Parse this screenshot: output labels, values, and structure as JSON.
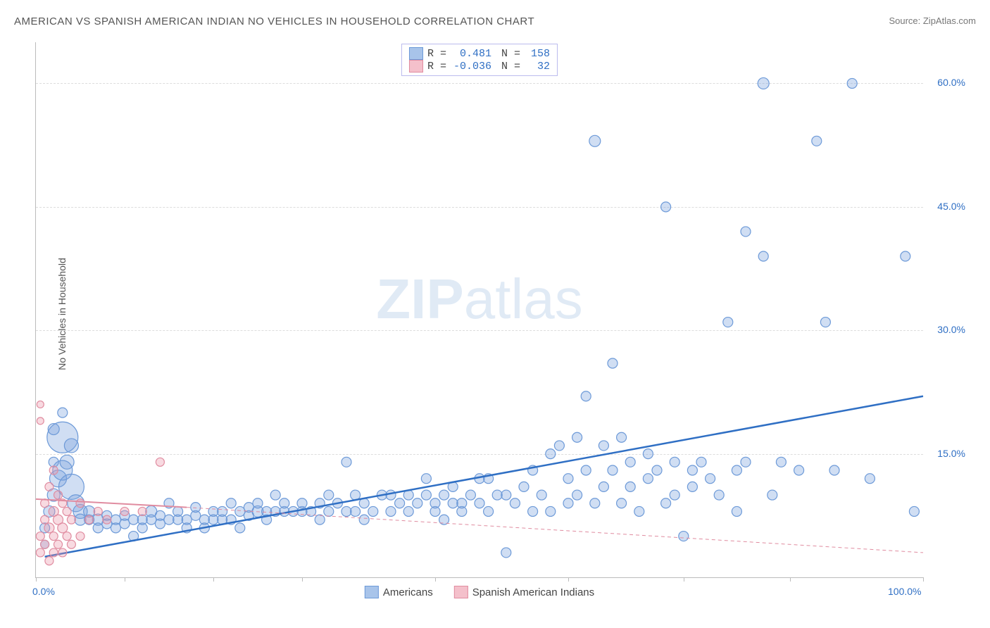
{
  "title": "AMERICAN VS SPANISH AMERICAN INDIAN NO VEHICLES IN HOUSEHOLD CORRELATION CHART",
  "source_prefix": "Source: ",
  "source_name": "ZipAtlas.com",
  "y_axis_label": "No Vehicles in Household",
  "watermark_bold": "ZIP",
  "watermark_light": "atlas",
  "chart": {
    "type": "scatter",
    "background_color": "#ffffff",
    "grid_color": "#dddddd",
    "axis_color": "#bbbbbb",
    "xlim": [
      0,
      100
    ],
    "ylim": [
      0,
      65
    ],
    "x_ticks": [
      0,
      10,
      20,
      30,
      45,
      60,
      73,
      85,
      100
    ],
    "x_tick_labels": {
      "0": "0.0%",
      "100": "100.0%"
    },
    "x_label_color": "#2f6fc4",
    "y_ticks": [
      15,
      30,
      45,
      60
    ],
    "y_tick_labels": {
      "15": "15.0%",
      "30": "30.0%",
      "45": "45.0%",
      "60": "60.0%"
    },
    "y_label_color": "#2f6fc4",
    "stats_box": {
      "border_color": "#bbbbee",
      "rows": [
        {
          "swatch_fill": "#a8c4ea",
          "swatch_border": "#6d9ad8",
          "r_label": "R = ",
          "r_value": "0.481",
          "r_color": "#2f6fc4",
          "n_label": "N = ",
          "n_value": "158",
          "n_color": "#2f6fc4"
        },
        {
          "swatch_fill": "#f4c0cb",
          "swatch_border": "#e08ca0",
          "r_label": "R = ",
          "r_value": "-0.036",
          "r_color": "#2f6fc4",
          "n_label": "N = ",
          "n_value": "32",
          "n_color": "#2f6fc4"
        }
      ]
    },
    "bottom_legend": [
      {
        "swatch_fill": "#a8c4ea",
        "swatch_border": "#6d9ad8",
        "label": "Americans"
      },
      {
        "swatch_fill": "#f4c0cb",
        "swatch_border": "#e08ca0",
        "label": "Spanish American Indians"
      }
    ],
    "series": [
      {
        "name": "Americans",
        "color_fill": "rgba(120,160,220,0.35)",
        "color_stroke": "#6d9ad8",
        "marker_stroke_width": 1.2,
        "trend": {
          "x1": 1,
          "y1": 2.5,
          "x2": 100,
          "y2": 22.0,
          "color": "#2f6fc4",
          "width": 2.5,
          "dash": "none"
        },
        "points": [
          {
            "x": 1,
            "y": 4,
            "r": 6
          },
          {
            "x": 1,
            "y": 6,
            "r": 7
          },
          {
            "x": 1.5,
            "y": 8,
            "r": 8
          },
          {
            "x": 2,
            "y": 10,
            "r": 9
          },
          {
            "x": 2.5,
            "y": 12,
            "r": 12
          },
          {
            "x": 3,
            "y": 13,
            "r": 14
          },
          {
            "x": 3,
            "y": 17,
            "r": 22
          },
          {
            "x": 3.5,
            "y": 14,
            "r": 10
          },
          {
            "x": 4,
            "y": 11,
            "r": 18
          },
          {
            "x": 4.5,
            "y": 9,
            "r": 12
          },
          {
            "x": 5,
            "y": 8,
            "r": 10
          },
          {
            "x": 5,
            "y": 7,
            "r": 8
          },
          {
            "x": 6,
            "y": 7,
            "r": 7
          },
          {
            "x": 6,
            "y": 8,
            "r": 8
          },
          {
            "x": 7,
            "y": 7,
            "r": 8
          },
          {
            "x": 7,
            "y": 6,
            "r": 7
          },
          {
            "x": 8,
            "y": 6.5,
            "r": 7
          },
          {
            "x": 8,
            "y": 7.5,
            "r": 7
          },
          {
            "x": 9,
            "y": 7,
            "r": 7
          },
          {
            "x": 9,
            "y": 6,
            "r": 7
          },
          {
            "x": 10,
            "y": 6.5,
            "r": 7
          },
          {
            "x": 10,
            "y": 7.5,
            "r": 7
          },
          {
            "x": 11,
            "y": 7,
            "r": 7
          },
          {
            "x": 11,
            "y": 5,
            "r": 7
          },
          {
            "x": 12,
            "y": 6,
            "r": 7
          },
          {
            "x": 12,
            "y": 7,
            "r": 7
          },
          {
            "x": 13,
            "y": 7,
            "r": 7
          },
          {
            "x": 13,
            "y": 8,
            "r": 8
          },
          {
            "x": 14,
            "y": 6.5,
            "r": 7
          },
          {
            "x": 14,
            "y": 7.5,
            "r": 7
          },
          {
            "x": 15,
            "y": 7,
            "r": 7
          },
          {
            "x": 16,
            "y": 7,
            "r": 7
          },
          {
            "x": 16,
            "y": 8,
            "r": 7
          },
          {
            "x": 17,
            "y": 7,
            "r": 7
          },
          {
            "x": 17,
            "y": 6,
            "r": 7
          },
          {
            "x": 18,
            "y": 7.5,
            "r": 7
          },
          {
            "x": 18,
            "y": 8.5,
            "r": 7
          },
          {
            "x": 19,
            "y": 7,
            "r": 7
          },
          {
            "x": 19,
            "y": 6,
            "r": 7
          },
          {
            "x": 20,
            "y": 8,
            "r": 7
          },
          {
            "x": 20,
            "y": 7,
            "r": 7
          },
          {
            "x": 21,
            "y": 7,
            "r": 7
          },
          {
            "x": 21,
            "y": 8,
            "r": 7
          },
          {
            "x": 22,
            "y": 9,
            "r": 7
          },
          {
            "x": 22,
            "y": 7,
            "r": 7
          },
          {
            "x": 23,
            "y": 8,
            "r": 7
          },
          {
            "x": 23,
            "y": 6,
            "r": 7
          },
          {
            "x": 24,
            "y": 8.5,
            "r": 7
          },
          {
            "x": 24,
            "y": 7.5,
            "r": 7
          },
          {
            "x": 25,
            "y": 8,
            "r": 8
          },
          {
            "x": 25,
            "y": 9,
            "r": 7
          },
          {
            "x": 26,
            "y": 7,
            "r": 7
          },
          {
            "x": 26,
            "y": 8,
            "r": 7
          },
          {
            "x": 27,
            "y": 8,
            "r": 7
          },
          {
            "x": 27,
            "y": 10,
            "r": 7
          },
          {
            "x": 28,
            "y": 8,
            "r": 7
          },
          {
            "x": 28,
            "y": 9,
            "r": 7
          },
          {
            "x": 29,
            "y": 8,
            "r": 7
          },
          {
            "x": 30,
            "y": 8,
            "r": 7
          },
          {
            "x": 30,
            "y": 9,
            "r": 7
          },
          {
            "x": 31,
            "y": 8,
            "r": 7
          },
          {
            "x": 32,
            "y": 9,
            "r": 7
          },
          {
            "x": 32,
            "y": 7,
            "r": 7
          },
          {
            "x": 33,
            "y": 8,
            "r": 7
          },
          {
            "x": 34,
            "y": 9,
            "r": 7
          },
          {
            "x": 35,
            "y": 8,
            "r": 7
          },
          {
            "x": 35,
            "y": 14,
            "r": 7
          },
          {
            "x": 36,
            "y": 8,
            "r": 7
          },
          {
            "x": 37,
            "y": 9,
            "r": 7
          },
          {
            "x": 37,
            "y": 7,
            "r": 7
          },
          {
            "x": 38,
            "y": 8,
            "r": 7
          },
          {
            "x": 39,
            "y": 10,
            "r": 7
          },
          {
            "x": 40,
            "y": 8,
            "r": 7
          },
          {
            "x": 40,
            "y": 10,
            "r": 7
          },
          {
            "x": 41,
            "y": 9,
            "r": 7
          },
          {
            "x": 42,
            "y": 8,
            "r": 7
          },
          {
            "x": 42,
            "y": 10,
            "r": 7
          },
          {
            "x": 43,
            "y": 9,
            "r": 7
          },
          {
            "x": 44,
            "y": 10,
            "r": 7
          },
          {
            "x": 44,
            "y": 12,
            "r": 7
          },
          {
            "x": 45,
            "y": 9,
            "r": 7
          },
          {
            "x": 45,
            "y": 8,
            "r": 7
          },
          {
            "x": 46,
            "y": 10,
            "r": 7
          },
          {
            "x": 47,
            "y": 9,
            "r": 7
          },
          {
            "x": 47,
            "y": 11,
            "r": 7
          },
          {
            "x": 48,
            "y": 9,
            "r": 7
          },
          {
            "x": 48,
            "y": 8,
            "r": 7
          },
          {
            "x": 49,
            "y": 10,
            "r": 7
          },
          {
            "x": 50,
            "y": 9,
            "r": 7
          },
          {
            "x": 50,
            "y": 12,
            "r": 7
          },
          {
            "x": 51,
            "y": 8,
            "r": 7
          },
          {
            "x": 52,
            "y": 10,
            "r": 7
          },
          {
            "x": 53,
            "y": 3,
            "r": 7
          },
          {
            "x": 54,
            "y": 9,
            "r": 7
          },
          {
            "x": 55,
            "y": 11,
            "r": 7
          },
          {
            "x": 56,
            "y": 8,
            "r": 7
          },
          {
            "x": 56,
            "y": 13,
            "r": 7
          },
          {
            "x": 57,
            "y": 10,
            "r": 7
          },
          {
            "x": 58,
            "y": 8,
            "r": 7
          },
          {
            "x": 58,
            "y": 15,
            "r": 7
          },
          {
            "x": 59,
            "y": 16,
            "r": 7
          },
          {
            "x": 60,
            "y": 9,
            "r": 7
          },
          {
            "x": 60,
            "y": 12,
            "r": 7
          },
          {
            "x": 61,
            "y": 17,
            "r": 7
          },
          {
            "x": 61,
            "y": 10,
            "r": 7
          },
          {
            "x": 62,
            "y": 13,
            "r": 7
          },
          {
            "x": 62,
            "y": 22,
            "r": 7
          },
          {
            "x": 63,
            "y": 9,
            "r": 7
          },
          {
            "x": 63,
            "y": 53,
            "r": 8
          },
          {
            "x": 64,
            "y": 11,
            "r": 7
          },
          {
            "x": 64,
            "y": 16,
            "r": 7
          },
          {
            "x": 65,
            "y": 26,
            "r": 7
          },
          {
            "x": 65,
            "y": 13,
            "r": 7
          },
          {
            "x": 66,
            "y": 9,
            "r": 7
          },
          {
            "x": 67,
            "y": 14,
            "r": 7
          },
          {
            "x": 67,
            "y": 11,
            "r": 7
          },
          {
            "x": 68,
            "y": 8,
            "r": 7
          },
          {
            "x": 69,
            "y": 15,
            "r": 7
          },
          {
            "x": 69,
            "y": 12,
            "r": 7
          },
          {
            "x": 70,
            "y": 13,
            "r": 7
          },
          {
            "x": 71,
            "y": 9,
            "r": 7
          },
          {
            "x": 71,
            "y": 45,
            "r": 7
          },
          {
            "x": 72,
            "y": 14,
            "r": 7
          },
          {
            "x": 72,
            "y": 10,
            "r": 7
          },
          {
            "x": 73,
            "y": 5,
            "r": 7
          },
          {
            "x": 74,
            "y": 13,
            "r": 7
          },
          {
            "x": 74,
            "y": 11,
            "r": 7
          },
          {
            "x": 75,
            "y": 14,
            "r": 7
          },
          {
            "x": 76,
            "y": 12,
            "r": 7
          },
          {
            "x": 77,
            "y": 10,
            "r": 7
          },
          {
            "x": 78,
            "y": 31,
            "r": 7
          },
          {
            "x": 79,
            "y": 13,
            "r": 7
          },
          {
            "x": 79,
            "y": 8,
            "r": 7
          },
          {
            "x": 80,
            "y": 14,
            "r": 7
          },
          {
            "x": 80,
            "y": 42,
            "r": 7
          },
          {
            "x": 82,
            "y": 60,
            "r": 8
          },
          {
            "x": 82,
            "y": 39,
            "r": 7
          },
          {
            "x": 83,
            "y": 10,
            "r": 7
          },
          {
            "x": 84,
            "y": 14,
            "r": 7
          },
          {
            "x": 86,
            "y": 13,
            "r": 7
          },
          {
            "x": 88,
            "y": 53,
            "r": 7
          },
          {
            "x": 89,
            "y": 31,
            "r": 7
          },
          {
            "x": 90,
            "y": 13,
            "r": 7
          },
          {
            "x": 92,
            "y": 60,
            "r": 7
          },
          {
            "x": 94,
            "y": 12,
            "r": 7
          },
          {
            "x": 98,
            "y": 39,
            "r": 7
          },
          {
            "x": 99,
            "y": 8,
            "r": 7
          },
          {
            "x": 46,
            "y": 7,
            "r": 7
          },
          {
            "x": 33,
            "y": 10,
            "r": 7
          },
          {
            "x": 15,
            "y": 9,
            "r": 7
          },
          {
            "x": 36,
            "y": 10,
            "r": 7
          },
          {
            "x": 4,
            "y": 16,
            "r": 10
          },
          {
            "x": 2,
            "y": 18,
            "r": 8
          },
          {
            "x": 3,
            "y": 20,
            "r": 7
          },
          {
            "x": 2,
            "y": 14,
            "r": 7
          },
          {
            "x": 53,
            "y": 10,
            "r": 7
          },
          {
            "x": 66,
            "y": 17,
            "r": 7
          },
          {
            "x": 51,
            "y": 12,
            "r": 7
          }
        ]
      },
      {
        "name": "Spanish American Indians",
        "color_fill": "rgba(235,150,170,0.35)",
        "color_stroke": "#e08ca0",
        "marker_stroke_width": 1.2,
        "trend": {
          "x1": 0,
          "y1": 9.5,
          "x2": 17,
          "y2": 8.5,
          "color": "#e08ca0",
          "width": 2,
          "dash": "none",
          "extend_x2": 100,
          "extend_y2": 3.0,
          "extend_dash": "5,4"
        },
        "points": [
          {
            "x": 0.5,
            "y": 3,
            "r": 6
          },
          {
            "x": 0.5,
            "y": 5,
            "r": 6
          },
          {
            "x": 0.5,
            "y": 19,
            "r": 5
          },
          {
            "x": 0.5,
            "y": 21,
            "r": 5
          },
          {
            "x": 1,
            "y": 4,
            "r": 6
          },
          {
            "x": 1,
            "y": 7,
            "r": 6
          },
          {
            "x": 1,
            "y": 9,
            "r": 6
          },
          {
            "x": 1.5,
            "y": 2,
            "r": 6
          },
          {
            "x": 1.5,
            "y": 6,
            "r": 7
          },
          {
            "x": 1.5,
            "y": 11,
            "r": 6
          },
          {
            "x": 2,
            "y": 3,
            "r": 6
          },
          {
            "x": 2,
            "y": 5,
            "r": 6
          },
          {
            "x": 2,
            "y": 8,
            "r": 7
          },
          {
            "x": 2,
            "y": 13,
            "r": 6
          },
          {
            "x": 2.5,
            "y": 4,
            "r": 6
          },
          {
            "x": 2.5,
            "y": 7,
            "r": 7
          },
          {
            "x": 2.5,
            "y": 10,
            "r": 6
          },
          {
            "x": 3,
            "y": 3,
            "r": 6
          },
          {
            "x": 3,
            "y": 6,
            "r": 7
          },
          {
            "x": 3,
            "y": 9,
            "r": 6
          },
          {
            "x": 3.5,
            "y": 5,
            "r": 6
          },
          {
            "x": 3.5,
            "y": 8,
            "r": 6
          },
          {
            "x": 4,
            "y": 4,
            "r": 6
          },
          {
            "x": 4,
            "y": 7,
            "r": 6
          },
          {
            "x": 5,
            "y": 5,
            "r": 6
          },
          {
            "x": 5,
            "y": 9,
            "r": 6
          },
          {
            "x": 6,
            "y": 7,
            "r": 6
          },
          {
            "x": 7,
            "y": 8,
            "r": 6
          },
          {
            "x": 8,
            "y": 7,
            "r": 6
          },
          {
            "x": 10,
            "y": 8,
            "r": 6
          },
          {
            "x": 12,
            "y": 8,
            "r": 6
          },
          {
            "x": 14,
            "y": 14,
            "r": 6
          }
        ]
      }
    ]
  }
}
